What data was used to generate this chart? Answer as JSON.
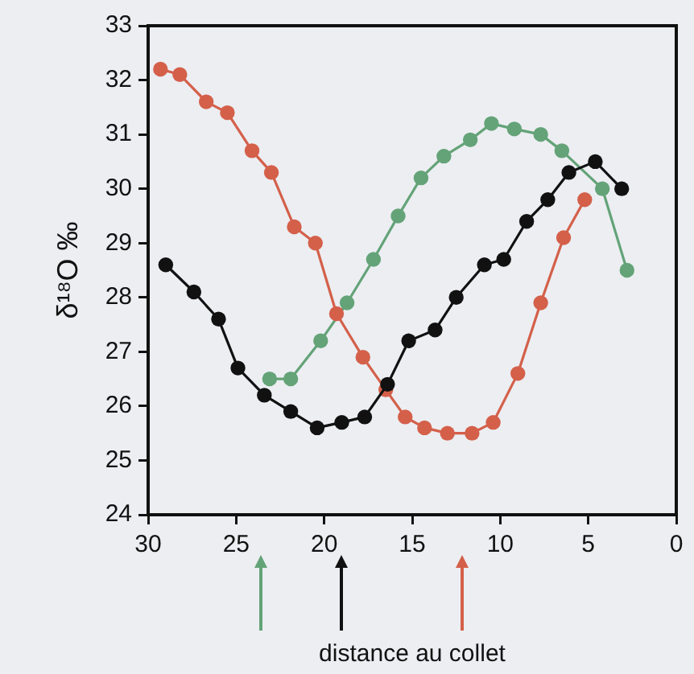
{
  "chart_data": {
    "type": "line",
    "ylabel": "δ¹⁸O ‰",
    "xlabel": "distance au collet",
    "xlim": [
      30,
      0
    ],
    "xticks": [
      30,
      25,
      20,
      15,
      10,
      5,
      0
    ],
    "ylim": [
      24,
      33
    ],
    "yticks": [
      24,
      25,
      26,
      27,
      28,
      29,
      30,
      31,
      32,
      33
    ],
    "marker": "circle",
    "series": [
      {
        "color": "#111111",
        "x": [
          29.0,
          27.4,
          26.0,
          24.9,
          23.4,
          21.9,
          20.4,
          19.0,
          17.7,
          16.4,
          15.2,
          13.7,
          12.5,
          10.9,
          9.8,
          8.5,
          7.3,
          6.1,
          4.6,
          3.1
        ],
        "values": [
          28.6,
          28.1,
          27.6,
          26.7,
          26.2,
          25.9,
          25.6,
          25.7,
          25.8,
          26.4,
          27.2,
          27.4,
          28.0,
          28.6,
          28.7,
          29.4,
          29.8,
          30.3,
          30.5,
          30.0
        ]
      },
      {
        "color": "#d4604a",
        "x": [
          29.3,
          28.2,
          26.7,
          25.5,
          24.1,
          23.0,
          21.7,
          20.5,
          19.3,
          17.8,
          16.5,
          15.4,
          14.3,
          13.0,
          11.6,
          10.4,
          9.0,
          7.7,
          6.4,
          5.2
        ],
        "values": [
          32.2,
          32.1,
          31.6,
          31.4,
          30.7,
          30.3,
          29.3,
          29.0,
          27.7,
          26.9,
          26.3,
          25.8,
          25.6,
          25.5,
          25.5,
          25.7,
          26.6,
          27.9,
          29.1,
          29.8
        ]
      },
      {
        "color": "#64a378",
        "x": [
          23.1,
          21.9,
          20.2,
          18.7,
          17.2,
          15.8,
          14.5,
          13.2,
          11.7,
          10.5,
          9.2,
          7.7,
          6.5,
          4.2,
          2.8
        ],
        "values": [
          26.5,
          26.5,
          27.2,
          27.9,
          28.7,
          29.5,
          30.2,
          30.6,
          30.9,
          31.2,
          31.1,
          31.0,
          30.7,
          30.0,
          28.5
        ]
      }
    ]
  }
}
